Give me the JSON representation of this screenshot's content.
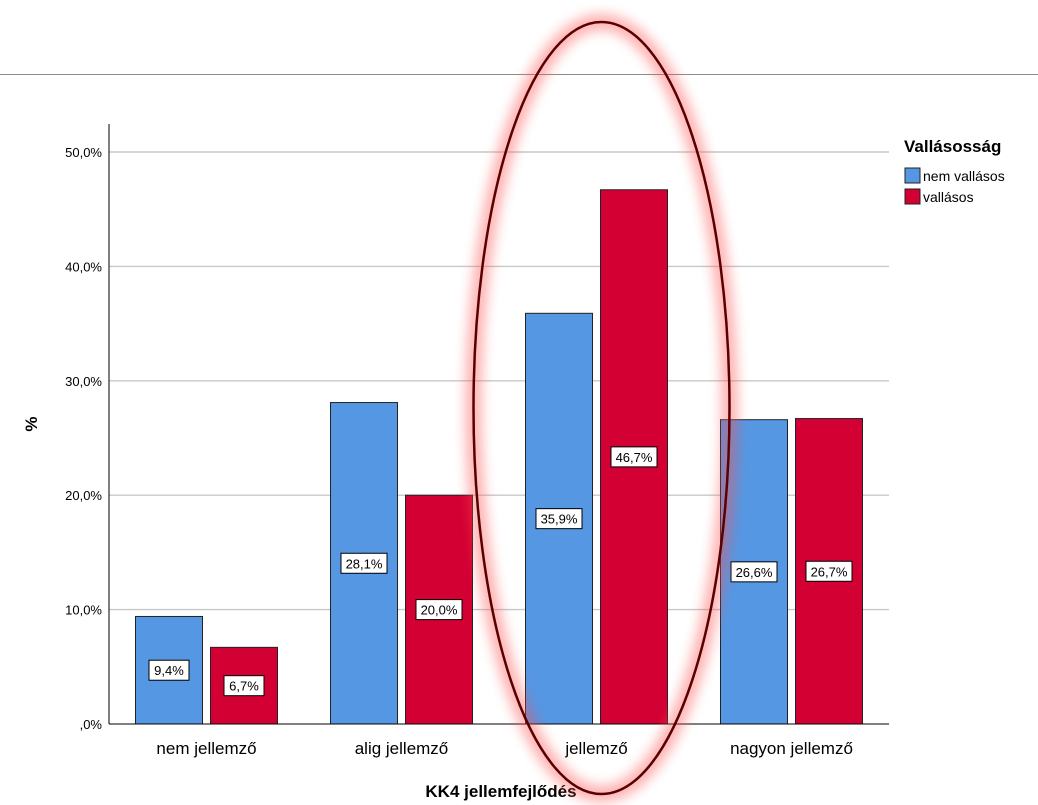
{
  "chart_data": {
    "type": "bar",
    "xlabel": "KK4 jellemfejlődés",
    "ylabel": "%",
    "ylim": [
      0,
      50
    ],
    "yticks": [
      0,
      10,
      20,
      30,
      40,
      50
    ],
    "ytick_labels": [
      ",0%",
      "10,0%",
      "20,0%",
      "30,0%",
      "40,0%",
      "50,0%"
    ],
    "grid": true,
    "legend_position": "top-right",
    "legend_title": "Vallásosság",
    "categories": [
      "nem jellemző",
      "alig jellemző",
      "jellemző",
      "nagyon jellemző"
    ],
    "series": [
      {
        "name": "nem vallásos",
        "color": "#5597e3",
        "values": [
          9.4,
          28.1,
          35.9,
          26.6
        ],
        "labels": [
          "9,4%",
          "28,1%",
          "35,9%",
          "26,6%"
        ]
      },
      {
        "name": "vallásos",
        "color": "#d20033",
        "values": [
          6.7,
          20.0,
          46.7,
          26.7
        ],
        "labels": [
          "6,7%",
          "20,0%",
          "46,7%",
          "26,7%"
        ]
      }
    ],
    "highlight_category": "jellemző",
    "highlight_color": "#ff4d4d"
  }
}
